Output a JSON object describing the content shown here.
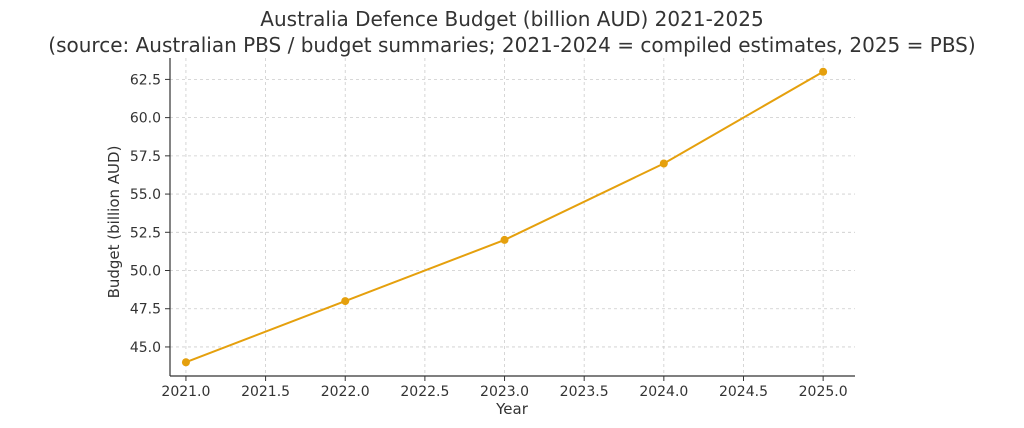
{
  "chart_data": {
    "type": "line",
    "title": "Australia Defence Budget (billion AUD) 2021-2025",
    "subtitle": "(source: Australian PBS / budget summaries; 2021-2024 = compiled estimates, 2025 = PBS)",
    "xlabel": "Year",
    "ylabel": "Budget (billion AUD)",
    "x": [
      2021,
      2022,
      2023,
      2024,
      2025
    ],
    "series": [
      {
        "values": [
          44,
          48,
          52,
          57,
          63
        ],
        "color": "#E5A00D"
      }
    ],
    "xlim": [
      2020.9,
      2025.2
    ],
    "ylim": [
      43.1,
      63.9
    ],
    "xticks": [
      "2021.0",
      "2021.5",
      "2022.0",
      "2022.5",
      "2023.0",
      "2023.5",
      "2024.0",
      "2024.5",
      "2025.0"
    ],
    "yticks": [
      "45.0",
      "47.5",
      "50.0",
      "52.5",
      "55.0",
      "57.5",
      "60.0",
      "62.5"
    ],
    "grid": true,
    "marker": "circle"
  }
}
